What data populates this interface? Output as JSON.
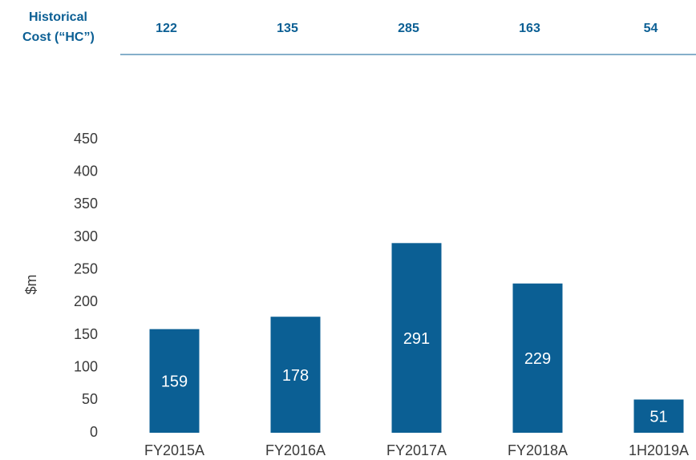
{
  "chart_data": {
    "type": "bar",
    "hc_row": {
      "label": [
        "Historical",
        "Cost (“HC”)"
      ],
      "values": [
        122,
        135,
        285,
        163,
        54
      ]
    },
    "y_label": "$m",
    "categories": [
      "FY2015A",
      "FY2016A",
      "FY2017A",
      "FY2018A",
      "1H2019A"
    ],
    "values": [
      159,
      178,
      291,
      229,
      51
    ],
    "color": "#0b5f94",
    "ylim": [
      0,
      450
    ],
    "yticks": [
      0,
      50,
      100,
      150,
      200,
      250,
      300,
      350,
      400,
      450
    ],
    "grid": false
  }
}
